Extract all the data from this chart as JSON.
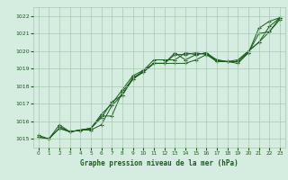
{
  "title": "Graphe pression niveau de la mer (hPa)",
  "background_color": "#d4ede0",
  "grid_color": "#a8c8b0",
  "line_color": "#1a5c1a",
  "xlim": [
    -0.5,
    23.5
  ],
  "ylim": [
    1014.5,
    1022.5
  ],
  "yticks": [
    1015,
    1016,
    1017,
    1018,
    1019,
    1020,
    1021,
    1022
  ],
  "xticks": [
    0,
    1,
    2,
    3,
    4,
    5,
    6,
    7,
    8,
    9,
    10,
    11,
    12,
    13,
    14,
    15,
    16,
    17,
    18,
    19,
    20,
    21,
    22,
    23
  ],
  "series": [
    {
      "x": [
        0,
        1,
        2,
        3,
        4,
        5,
        6,
        7,
        8,
        9,
        10,
        11,
        12,
        13,
        14,
        15,
        16,
        17,
        18,
        19,
        20,
        21,
        22,
        23
      ],
      "y": [
        1015.1,
        1015.0,
        1015.6,
        1015.4,
        1015.5,
        1015.5,
        1015.8,
        1016.9,
        1017.5,
        1018.5,
        1018.8,
        1019.3,
        1019.3,
        1019.3,
        1019.3,
        1019.5,
        1019.8,
        1019.4,
        1019.4,
        1019.3,
        1019.9,
        1021.3,
        1021.7,
        1021.9
      ]
    },
    {
      "x": [
        0,
        1,
        2,
        3,
        4,
        5,
        6,
        7,
        8,
        9,
        10,
        11,
        12,
        13,
        14,
        15,
        16,
        17,
        18,
        19,
        20,
        21,
        22,
        23
      ],
      "y": [
        1015.1,
        1015.0,
        1015.6,
        1015.4,
        1015.5,
        1015.6,
        1016.3,
        1016.3,
        1017.7,
        1018.4,
        1018.8,
        1019.3,
        1019.3,
        1019.8,
        1019.8,
        1019.9,
        1019.8,
        1019.5,
        1019.4,
        1019.4,
        1020.0,
        1020.5,
        1021.1,
        1021.8
      ]
    },
    {
      "x": [
        0,
        1,
        2,
        3,
        4,
        5,
        6,
        7,
        8,
        9,
        10,
        11,
        12,
        13,
        14,
        15,
        16,
        17,
        18,
        19,
        20,
        21,
        22,
        23
      ],
      "y": [
        1015.2,
        1015.0,
        1015.8,
        1015.4,
        1015.5,
        1015.6,
        1016.4,
        1017.0,
        1017.8,
        1018.6,
        1018.9,
        1019.5,
        1019.5,
        1019.5,
        1019.9,
        1019.8,
        1019.9,
        1019.5,
        1019.4,
        1019.5,
        1020.0,
        1020.5,
        1021.4,
        1021.9
      ]
    },
    {
      "x": [
        2,
        3,
        4,
        5,
        6,
        7,
        8,
        9,
        10,
        11,
        12,
        13,
        14,
        15,
        16,
        17,
        18,
        19,
        20,
        21,
        22,
        23
      ],
      "y": [
        1015.7,
        1015.4,
        1015.5,
        1015.6,
        1016.2,
        1017.1,
        1017.5,
        1018.4,
        1018.9,
        1019.3,
        1019.3,
        1019.9,
        1019.5,
        1019.8,
        1019.9,
        1019.4,
        1019.4,
        1019.4,
        1019.9,
        1021.0,
        1021.1,
        1021.9
      ]
    }
  ]
}
